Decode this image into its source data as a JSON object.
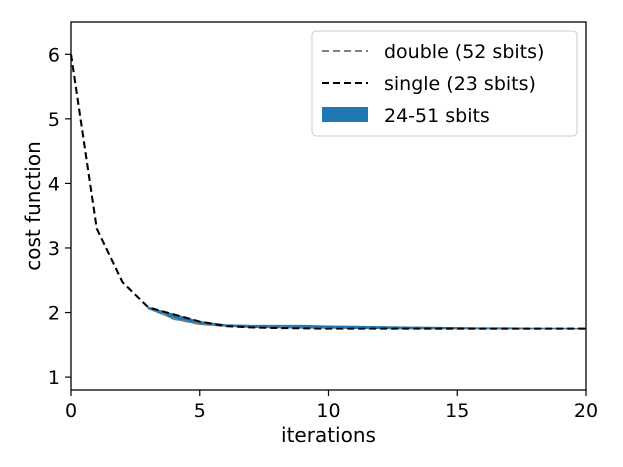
{
  "chart_data": {
    "type": "line",
    "title": "",
    "xlabel": "iterations",
    "ylabel": "cost function",
    "xlim": [
      0,
      20
    ],
    "ylim": [
      0.8,
      6.5
    ],
    "xticks": [
      0,
      5,
      10,
      15,
      20
    ],
    "yticks": [
      1,
      2,
      3,
      4,
      5,
      6
    ],
    "grid": false,
    "legend_position": "top-right",
    "band": {
      "name": "24-51 sbits",
      "color": "#1f77b4",
      "x": [
        3,
        4,
        5,
        6,
        7,
        8,
        9,
        10,
        11,
        12,
        13,
        14,
        15,
        16,
        17,
        18,
        19,
        20
      ],
      "lower": [
        2.06,
        1.9,
        1.82,
        1.79,
        1.77,
        1.765,
        1.76,
        1.76,
        1.755,
        1.755,
        1.75,
        1.75,
        1.75,
        1.75,
        1.75,
        1.75,
        1.75,
        1.75
      ],
      "upper": [
        2.08,
        1.97,
        1.86,
        1.81,
        1.8,
        1.8,
        1.8,
        1.79,
        1.785,
        1.78,
        1.775,
        1.77,
        1.765,
        1.76,
        1.76,
        1.755,
        1.755,
        1.75
      ]
    },
    "series": [
      {
        "name": "double (52 sbits)",
        "color": "#808080",
        "dash": "dashed",
        "x": [
          0,
          1,
          2,
          3,
          4,
          5,
          6,
          7,
          8,
          9,
          10,
          11,
          12,
          13,
          14,
          15,
          16,
          17,
          18,
          19,
          20
        ],
        "values": [
          6.0,
          3.3,
          2.47,
          2.08,
          1.9,
          1.82,
          1.79,
          1.77,
          1.77,
          1.765,
          1.76,
          1.76,
          1.755,
          1.755,
          1.75,
          1.75,
          1.75,
          1.75,
          1.75,
          1.75,
          1.75
        ]
      },
      {
        "name": "single (23 sbits)",
        "color": "#000000",
        "dash": "dashed",
        "x": [
          0,
          1,
          2,
          3,
          4,
          5,
          6,
          7,
          8,
          9,
          10,
          11,
          12,
          13,
          14,
          15,
          16,
          17,
          18,
          19,
          20
        ],
        "values": [
          6.0,
          3.3,
          2.47,
          2.08,
          1.97,
          1.86,
          1.79,
          1.77,
          1.76,
          1.755,
          1.75,
          1.75,
          1.75,
          1.75,
          1.75,
          1.75,
          1.75,
          1.75,
          1.75,
          1.75,
          1.75
        ]
      }
    ]
  }
}
